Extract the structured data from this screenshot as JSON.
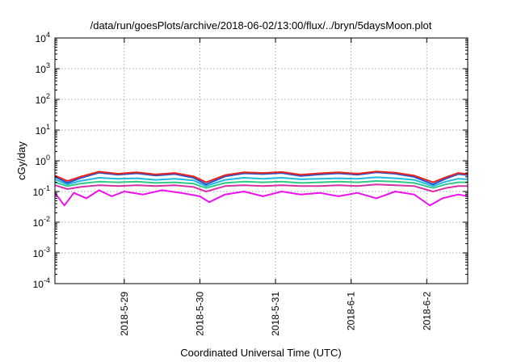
{
  "chart_data": {
    "type": "line",
    "title": "/data/run/goesPlots/archive/2018-06-02/13:00/flux/../bryn/5daysMoon.plot",
    "xlabel": "Coordinated Universal Time (UTC)",
    "ylabel": "cGy/day",
    "yscale": "log",
    "ylim": [
      0.0001,
      10000
    ],
    "yticks": [
      {
        "base": "10",
        "exp": "-4",
        "value": 0.0001
      },
      {
        "base": "10",
        "exp": "-3",
        "value": 0.001
      },
      {
        "base": "10",
        "exp": "-2",
        "value": 0.01
      },
      {
        "base": "10",
        "exp": "-1",
        "value": 0.1
      },
      {
        "base": "10",
        "exp": "0",
        "value": 1
      },
      {
        "base": "10",
        "exp": "1",
        "value": 10
      },
      {
        "base": "10",
        "exp": "2",
        "value": 100
      },
      {
        "base": "10",
        "exp": "3",
        "value": 1000
      },
      {
        "base": "10",
        "exp": "4",
        "value": 10000
      }
    ],
    "xlim": [
      "2018-05-28T02:00",
      "2018-06-02T13:00"
    ],
    "xticks": [
      {
        "label": "2018-5-29",
        "value": "2018-05-29T00:00"
      },
      {
        "label": "2018-5-30",
        "value": "2018-05-30T00:00"
      },
      {
        "label": "2018-5-31",
        "value": "2018-05-31T00:00"
      },
      {
        "label": "2018-6-1",
        "value": "2018-06-01T00:00"
      },
      {
        "label": "2018-6-2",
        "value": "2018-06-02T00:00"
      }
    ],
    "grid": true,
    "legend": "none",
    "series": [
      {
        "color": "#e8231c",
        "points": [
          [
            "2018-05-28T02:00",
            0.33
          ],
          [
            "2018-05-28T06:00",
            0.22
          ],
          [
            "2018-05-28T10:00",
            0.3
          ],
          [
            "2018-05-28T16:00",
            0.44
          ],
          [
            "2018-05-28T22:00",
            0.38
          ],
          [
            "2018-05-29T04:00",
            0.42
          ],
          [
            "2018-05-29T10:00",
            0.36
          ],
          [
            "2018-05-29T16:00",
            0.4
          ],
          [
            "2018-05-29T22:00",
            0.31
          ],
          [
            "2018-05-30T02:00",
            0.2
          ],
          [
            "2018-05-30T08:00",
            0.34
          ],
          [
            "2018-05-30T14:00",
            0.42
          ],
          [
            "2018-05-30T20:00",
            0.4
          ],
          [
            "2018-05-31T02:00",
            0.43
          ],
          [
            "2018-05-31T08:00",
            0.35
          ],
          [
            "2018-05-31T14:00",
            0.39
          ],
          [
            "2018-05-31T20:00",
            0.42
          ],
          [
            "2018-06-01T02:00",
            0.38
          ],
          [
            "2018-06-01T08:00",
            0.45
          ],
          [
            "2018-06-01T14:00",
            0.41
          ],
          [
            "2018-06-01T20:00",
            0.33
          ],
          [
            "2018-06-02T02:00",
            0.2
          ],
          [
            "2018-06-02T06:00",
            0.29
          ],
          [
            "2018-06-02T10:00",
            0.4
          ],
          [
            "2018-06-02T13:00",
            0.37
          ]
        ]
      },
      {
        "color": "#2354d6",
        "points": [
          [
            "2018-05-28T02:00",
            0.3
          ],
          [
            "2018-05-28T06:00",
            0.19
          ],
          [
            "2018-05-28T10:00",
            0.27
          ],
          [
            "2018-05-28T16:00",
            0.41
          ],
          [
            "2018-05-28T22:00",
            0.35
          ],
          [
            "2018-05-29T04:00",
            0.39
          ],
          [
            "2018-05-29T10:00",
            0.33
          ],
          [
            "2018-05-29T16:00",
            0.37
          ],
          [
            "2018-05-29T22:00",
            0.28
          ],
          [
            "2018-05-30T02:00",
            0.17
          ],
          [
            "2018-05-30T08:00",
            0.31
          ],
          [
            "2018-05-30T14:00",
            0.39
          ],
          [
            "2018-05-30T20:00",
            0.37
          ],
          [
            "2018-05-31T02:00",
            0.4
          ],
          [
            "2018-05-31T08:00",
            0.32
          ],
          [
            "2018-05-31T14:00",
            0.36
          ],
          [
            "2018-05-31T20:00",
            0.39
          ],
          [
            "2018-06-01T02:00",
            0.35
          ],
          [
            "2018-06-01T08:00",
            0.42
          ],
          [
            "2018-06-01T14:00",
            0.38
          ],
          [
            "2018-06-01T20:00",
            0.3
          ],
          [
            "2018-06-02T02:00",
            0.17
          ],
          [
            "2018-06-02T06:00",
            0.26
          ],
          [
            "2018-06-02T10:00",
            0.37
          ],
          [
            "2018-06-02T13:00",
            0.34
          ]
        ]
      },
      {
        "color": "#1fb8e0",
        "points": [
          [
            "2018-05-28T02:00",
            0.25
          ],
          [
            "2018-05-28T06:00",
            0.17
          ],
          [
            "2018-05-28T10:00",
            0.22
          ],
          [
            "2018-05-28T16:00",
            0.28
          ],
          [
            "2018-05-28T22:00",
            0.26
          ],
          [
            "2018-05-29T04:00",
            0.27
          ],
          [
            "2018-05-29T10:00",
            0.24
          ],
          [
            "2018-05-29T16:00",
            0.26
          ],
          [
            "2018-05-29T22:00",
            0.23
          ],
          [
            "2018-05-30T02:00",
            0.15
          ],
          [
            "2018-05-30T08:00",
            0.24
          ],
          [
            "2018-05-30T14:00",
            0.28
          ],
          [
            "2018-05-30T20:00",
            0.26
          ],
          [
            "2018-05-31T02:00",
            0.28
          ],
          [
            "2018-05-31T08:00",
            0.25
          ],
          [
            "2018-05-31T14:00",
            0.26
          ],
          [
            "2018-05-31T20:00",
            0.27
          ],
          [
            "2018-06-01T02:00",
            0.26
          ],
          [
            "2018-06-01T08:00",
            0.29
          ],
          [
            "2018-06-01T14:00",
            0.27
          ],
          [
            "2018-06-01T20:00",
            0.24
          ],
          [
            "2018-06-02T02:00",
            0.15
          ],
          [
            "2018-06-02T06:00",
            0.21
          ],
          [
            "2018-06-02T10:00",
            0.26
          ],
          [
            "2018-06-02T13:00",
            0.25
          ]
        ]
      },
      {
        "color": "#2fc98a",
        "points": [
          [
            "2018-05-28T02:00",
            0.2
          ],
          [
            "2018-05-28T06:00",
            0.15
          ],
          [
            "2018-05-28T10:00",
            0.18
          ],
          [
            "2018-05-28T16:00",
            0.21
          ],
          [
            "2018-05-28T22:00",
            0.2
          ],
          [
            "2018-05-29T04:00",
            0.21
          ],
          [
            "2018-05-29T10:00",
            0.19
          ],
          [
            "2018-05-29T16:00",
            0.2
          ],
          [
            "2018-05-29T22:00",
            0.18
          ],
          [
            "2018-05-30T02:00",
            0.13
          ],
          [
            "2018-05-30T08:00",
            0.19
          ],
          [
            "2018-05-30T14:00",
            0.21
          ],
          [
            "2018-05-30T20:00",
            0.2
          ],
          [
            "2018-05-31T02:00",
            0.21
          ],
          [
            "2018-05-31T08:00",
            0.19
          ],
          [
            "2018-05-31T14:00",
            0.2
          ],
          [
            "2018-05-31T20:00",
            0.21
          ],
          [
            "2018-06-01T02:00",
            0.2
          ],
          [
            "2018-06-01T08:00",
            0.22
          ],
          [
            "2018-06-01T14:00",
            0.21
          ],
          [
            "2018-06-01T20:00",
            0.19
          ],
          [
            "2018-06-02T02:00",
            0.13
          ],
          [
            "2018-06-02T06:00",
            0.17
          ],
          [
            "2018-06-02T10:00",
            0.2
          ],
          [
            "2018-06-02T13:00",
            0.2
          ]
        ]
      },
      {
        "color": "#d62fa8",
        "points": [
          [
            "2018-05-28T02:00",
            0.16
          ],
          [
            "2018-05-28T06:00",
            0.12
          ],
          [
            "2018-05-28T10:00",
            0.14
          ],
          [
            "2018-05-28T16:00",
            0.16
          ],
          [
            "2018-05-28T22:00",
            0.15
          ],
          [
            "2018-05-29T04:00",
            0.16
          ],
          [
            "2018-05-29T10:00",
            0.15
          ],
          [
            "2018-05-29T16:00",
            0.16
          ],
          [
            "2018-05-29T22:00",
            0.14
          ],
          [
            "2018-05-30T02:00",
            0.1
          ],
          [
            "2018-05-30T08:00",
            0.15
          ],
          [
            "2018-05-30T14:00",
            0.16
          ],
          [
            "2018-05-30T20:00",
            0.15
          ],
          [
            "2018-05-31T02:00",
            0.16
          ],
          [
            "2018-05-31T08:00",
            0.15
          ],
          [
            "2018-05-31T14:00",
            0.15
          ],
          [
            "2018-05-31T20:00",
            0.16
          ],
          [
            "2018-06-01T02:00",
            0.15
          ],
          [
            "2018-06-01T08:00",
            0.17
          ],
          [
            "2018-06-01T14:00",
            0.16
          ],
          [
            "2018-06-01T20:00",
            0.15
          ],
          [
            "2018-06-02T02:00",
            0.1
          ],
          [
            "2018-06-02T06:00",
            0.13
          ],
          [
            "2018-06-02T10:00",
            0.15
          ],
          [
            "2018-06-02T13:00",
            0.15
          ]
        ]
      },
      {
        "color": "#ee11ee",
        "points": [
          [
            "2018-05-28T02:00",
            0.09
          ],
          [
            "2018-05-28T05:00",
            0.035
          ],
          [
            "2018-05-28T08:00",
            0.09
          ],
          [
            "2018-05-28T12:00",
            0.06
          ],
          [
            "2018-05-28T16:00",
            0.11
          ],
          [
            "2018-05-28T20:00",
            0.07
          ],
          [
            "2018-05-29T00:00",
            0.1
          ],
          [
            "2018-05-29T06:00",
            0.08
          ],
          [
            "2018-05-29T12:00",
            0.11
          ],
          [
            "2018-05-29T18:00",
            0.09
          ],
          [
            "2018-05-30T00:00",
            0.07
          ],
          [
            "2018-05-30T03:00",
            0.045
          ],
          [
            "2018-05-30T08:00",
            0.08
          ],
          [
            "2018-05-30T14:00",
            0.1
          ],
          [
            "2018-05-30T20:00",
            0.07
          ],
          [
            "2018-05-31T02:00",
            0.1
          ],
          [
            "2018-05-31T08:00",
            0.08
          ],
          [
            "2018-05-31T14:00",
            0.09
          ],
          [
            "2018-05-31T20:00",
            0.07
          ],
          [
            "2018-06-01T02:00",
            0.09
          ],
          [
            "2018-06-01T08:00",
            0.06
          ],
          [
            "2018-06-01T14:00",
            0.1
          ],
          [
            "2018-06-01T20:00",
            0.08
          ],
          [
            "2018-06-02T01:00",
            0.035
          ],
          [
            "2018-06-02T05:00",
            0.06
          ],
          [
            "2018-06-02T10:00",
            0.08
          ],
          [
            "2018-06-02T13:00",
            0.07
          ]
        ]
      }
    ]
  }
}
